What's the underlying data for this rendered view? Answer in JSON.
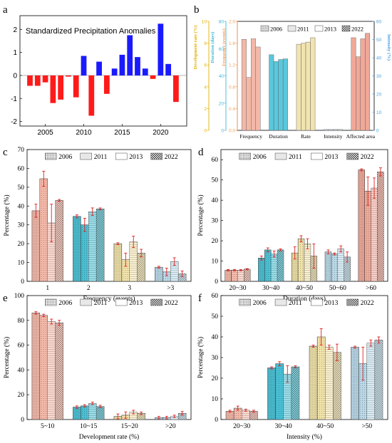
{
  "chart_data": [
    {
      "panel": "a",
      "type": "bar",
      "title": "Standardized Precipitation Anomalies",
      "x": [
        2003,
        2004,
        2005,
        2006,
        2007,
        2008,
        2009,
        2010,
        2011,
        2012,
        2013,
        2014,
        2015,
        2016,
        2017,
        2018,
        2019,
        2020,
        2021,
        2022
      ],
      "values": [
        -0.45,
        -0.45,
        -0.3,
        -1.2,
        -1.05,
        -0.05,
        -0.95,
        0.85,
        -1.75,
        0.6,
        -0.8,
        0.3,
        0.9,
        1.75,
        0.8,
        0.3,
        -0.15,
        2.25,
        0.5,
        -1.15
      ],
      "colors": {
        "positive": "#1a1aff",
        "negative": "#ff1a1a"
      },
      "x_ticks": [
        "2005",
        "2010",
        "2015",
        "2020"
      ],
      "y_ticks": [
        "-2",
        "-1",
        "0",
        "1",
        "2"
      ],
      "ylim": [
        -2.2,
        2.6
      ]
    },
    {
      "panel": "b",
      "type": "bar",
      "legend": [
        "2006",
        "2011",
        "2013",
        "2022"
      ],
      "categories": [
        "Frequency",
        "Duration",
        "Rate",
        "Intensity",
        "Affected area"
      ],
      "axes": [
        {
          "label": "Development rate (%)",
          "color": "#e0b000",
          "ticks": [
            "0",
            "2",
            "4",
            "6",
            "8",
            "10"
          ],
          "ylim": [
            0,
            10
          ]
        },
        {
          "label": "Duration (days)",
          "color": "#3fb8d8",
          "ticks": [
            "0",
            "20",
            "40",
            "60",
            "80"
          ],
          "ylim": [
            0,
            80
          ]
        },
        {
          "label": "Frequency (events)",
          "color": "#f0a060",
          "ticks": [
            "0.0",
            "0.4",
            "0.8",
            "1.2",
            "1.6",
            "2.0"
          ],
          "ylim": [
            0,
            2
          ]
        },
        {
          "label": "Intensity (%)",
          "color": "#4aa0e0",
          "ticks": [
            "0",
            "10",
            "20",
            "30",
            "40",
            "50",
            "60"
          ],
          "ylim": [
            0,
            60
          ]
        }
      ],
      "series": [
        {
          "name": "2006",
          "values": [
            1.67,
            55.5,
            1.58,
            0.47,
            1.7
          ]
        },
        {
          "name": "2011",
          "values": [
            0.97,
            50.5,
            1.6,
            0.46,
            1.35
          ]
        },
        {
          "name": "2013",
          "values": [
            1.68,
            52,
            1.62,
            0.48,
            1.68
          ]
        },
        {
          "name": "2022",
          "values": [
            1.53,
            52.5,
            1.7,
            0.48,
            1.78
          ]
        }
      ],
      "bar_colors": [
        "#f4b8a8",
        "#5ac8dc",
        "#f2e4b0",
        "#c8dde8",
        "#f0a898"
      ]
    },
    {
      "panel": "c",
      "type": "bar",
      "xlabel": "Frequency (events)",
      "ylabel": "Percentage (%)",
      "legend": [
        "2006",
        "2011",
        "2013",
        "2022"
      ],
      "categories": [
        "1",
        "2",
        "3",
        ">3"
      ],
      "colors": [
        "#f4b8a8",
        "#48c0d4",
        "#f0e2a8",
        "#b8d8e8"
      ],
      "ylim": [
        0,
        70
      ],
      "y_ticks": [
        "0",
        "10",
        "20",
        "30",
        "40",
        "50",
        "60",
        "70"
      ],
      "series": [
        {
          "name": "2006",
          "values": [
            37.5,
            34.5,
            20,
            7.5
          ],
          "err": [
            3.5,
            0.8,
            0.5,
            0.5
          ]
        },
        {
          "name": "2011",
          "values": [
            54.5,
            30,
            11.5,
            5
          ],
          "err": [
            4,
            3.5,
            3.5,
            2
          ]
        },
        {
          "name": "2013",
          "values": [
            31,
            37,
            21,
            10.5
          ],
          "err": [
            10,
            2,
            3,
            2
          ]
        },
        {
          "name": "2022",
          "values": [
            43,
            38.5,
            15,
            4
          ],
          "err": [
            0.5,
            0.5,
            2,
            1.5
          ]
        }
      ]
    },
    {
      "panel": "d",
      "type": "bar",
      "xlabel": "Duration (days)",
      "ylabel": "Percentage (%)",
      "legend": [
        "2006",
        "2011",
        "2013",
        "2022"
      ],
      "categories": [
        "20~30",
        "30~40",
        "40~50",
        "50~60",
        ">60"
      ],
      "colors": [
        "#f4b8a8",
        "#48c0d4",
        "#f0e2a8",
        "#b8d8e8",
        "#f0a898"
      ],
      "ylim": [
        0,
        65
      ],
      "y_ticks": [
        "0",
        "10",
        "20",
        "30",
        "40",
        "50",
        "60"
      ],
      "series": [
        {
          "name": "2006",
          "values": [
            5.5,
            11.5,
            14,
            14.5,
            55
          ],
          "err": [
            0.3,
            1,
            3,
            1,
            0.5
          ]
        },
        {
          "name": "2011",
          "values": [
            5.5,
            15.5,
            21,
            13.5,
            44.5
          ],
          "err": [
            0.3,
            1,
            1.5,
            0.5,
            7
          ]
        },
        {
          "name": "2013",
          "values": [
            5.5,
            13.5,
            18.5,
            16,
            46
          ],
          "err": [
            0.3,
            1.5,
            2.5,
            1.5,
            5
          ]
        },
        {
          "name": "2022",
          "values": [
            6,
            15.5,
            12.5,
            12,
            54
          ],
          "err": [
            0.3,
            0.5,
            6,
            2.5,
            2
          ]
        }
      ]
    },
    {
      "panel": "e",
      "type": "bar",
      "xlabel": "Development rate (%)",
      "ylabel": "Percentage (%)",
      "legend": [
        "2006",
        "2011",
        "2013",
        "2022"
      ],
      "categories": [
        "5~10",
        "10~15",
        "15~20",
        ">20"
      ],
      "colors": [
        "#f4b8a8",
        "#48c0d4",
        "#f0e2a8",
        "#b8d8e8"
      ],
      "ylim": [
        0,
        100
      ],
      "y_ticks": [
        "0",
        "20",
        "40",
        "60",
        "80",
        "100"
      ],
      "series": [
        {
          "name": "2006",
          "values": [
            86,
            10,
            2.5,
            1.5
          ],
          "err": [
            1,
            1,
            2,
            1
          ]
        },
        {
          "name": "2011",
          "values": [
            84,
            11,
            3.5,
            1.5
          ],
          "err": [
            1,
            1,
            2.5,
            1
          ]
        },
        {
          "name": "2013",
          "values": [
            79,
            13,
            6,
            2.5
          ],
          "err": [
            2,
            1,
            1.5,
            1
          ]
        },
        {
          "name": "2022",
          "values": [
            78,
            10.5,
            5,
            5
          ],
          "err": [
            2,
            1,
            1,
            1.5
          ]
        }
      ]
    },
    {
      "panel": "f",
      "type": "bar",
      "xlabel": "Intensity (%)",
      "ylabel": "Percentage (%)",
      "legend": [
        "2006",
        "2011",
        "2013",
        "2022"
      ],
      "categories": [
        "20~30",
        "30~40",
        "40~50",
        ">50"
      ],
      "colors": [
        "#f4b8a8",
        "#48c0d4",
        "#f0e2a8",
        "#b8d8e8"
      ],
      "ylim": [
        0,
        60
      ],
      "y_ticks": [
        "0",
        "10",
        "20",
        "30",
        "40",
        "50",
        "60"
      ],
      "series": [
        {
          "name": "2006",
          "values": [
            4,
            25,
            35.5,
            35
          ],
          "err": [
            0.5,
            0.5,
            0.5,
            0.5
          ]
        },
        {
          "name": "2011",
          "values": [
            5.5,
            27,
            40,
            27
          ],
          "err": [
            1,
            1,
            4,
            8
          ]
        },
        {
          "name": "2013",
          "values": [
            4.5,
            22,
            35,
            37
          ],
          "err": [
            0.5,
            4,
            1,
            1.5
          ]
        },
        {
          "name": "2022",
          "values": [
            4,
            25.5,
            32.5,
            38.5
          ],
          "err": [
            0.5,
            0.5,
            4,
            1.5
          ]
        }
      ]
    }
  ],
  "panel_labels": [
    "a",
    "b",
    "c",
    "d",
    "e",
    "f"
  ]
}
